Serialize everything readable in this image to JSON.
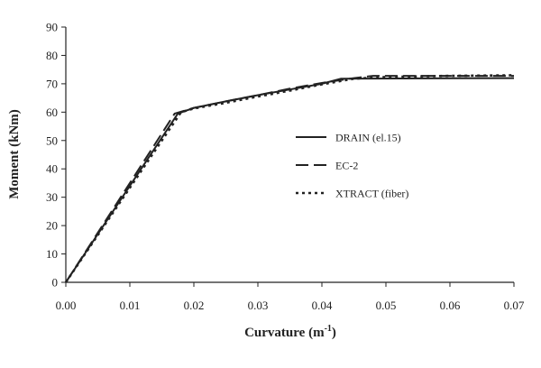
{
  "chart_data": {
    "type": "line",
    "title": "",
    "xlabel": "Curvature",
    "xlabel_unit_base": "m",
    "xlabel_unit_exp": "-1",
    "ylabel": "Moment (kNm)",
    "xlim": [
      0,
      0.07
    ],
    "ylim": [
      0,
      90
    ],
    "x_ticks": [
      "0.00",
      "0.01",
      "0.02",
      "0.03",
      "0.04",
      "0.05",
      "0.06",
      "0.07"
    ],
    "y_ticks": [
      "0",
      "10",
      "20",
      "30",
      "40",
      "50",
      "60",
      "70",
      "80",
      "90"
    ],
    "grid": false,
    "legend_position": "right",
    "series": [
      {
        "name": "DRAIN (el.15)",
        "style": "solid",
        "color": "#222222",
        "points": [
          [
            0,
            0
          ],
          [
            0.0175,
            59.5
          ],
          [
            0.02,
            61.5
          ],
          [
            0.025,
            63.8
          ],
          [
            0.03,
            66
          ],
          [
            0.035,
            68
          ],
          [
            0.04,
            70
          ],
          [
            0.043,
            71.8
          ],
          [
            0.07,
            72
          ]
        ]
      },
      {
        "name": "EC-2",
        "style": "dashed",
        "color": "#222222",
        "points": [
          [
            0,
            0
          ],
          [
            0.017,
            59.5
          ],
          [
            0.02,
            61.5
          ],
          [
            0.025,
            63.8
          ],
          [
            0.03,
            66
          ],
          [
            0.035,
            68.3
          ],
          [
            0.04,
            70.3
          ],
          [
            0.045,
            72
          ],
          [
            0.048,
            72.8
          ],
          [
            0.07,
            72.8
          ]
        ]
      },
      {
        "name": "XTRACT (fiber)",
        "style": "dotted",
        "color": "#222222",
        "points": [
          [
            0,
            0
          ],
          [
            0.018,
            60
          ],
          [
            0.02,
            61.3
          ],
          [
            0.025,
            63.3
          ],
          [
            0.03,
            65.5
          ],
          [
            0.035,
            67.6
          ],
          [
            0.04,
            69.8
          ],
          [
            0.045,
            71.8
          ],
          [
            0.05,
            72.4
          ],
          [
            0.06,
            72.8
          ],
          [
            0.07,
            73
          ]
        ]
      }
    ]
  }
}
